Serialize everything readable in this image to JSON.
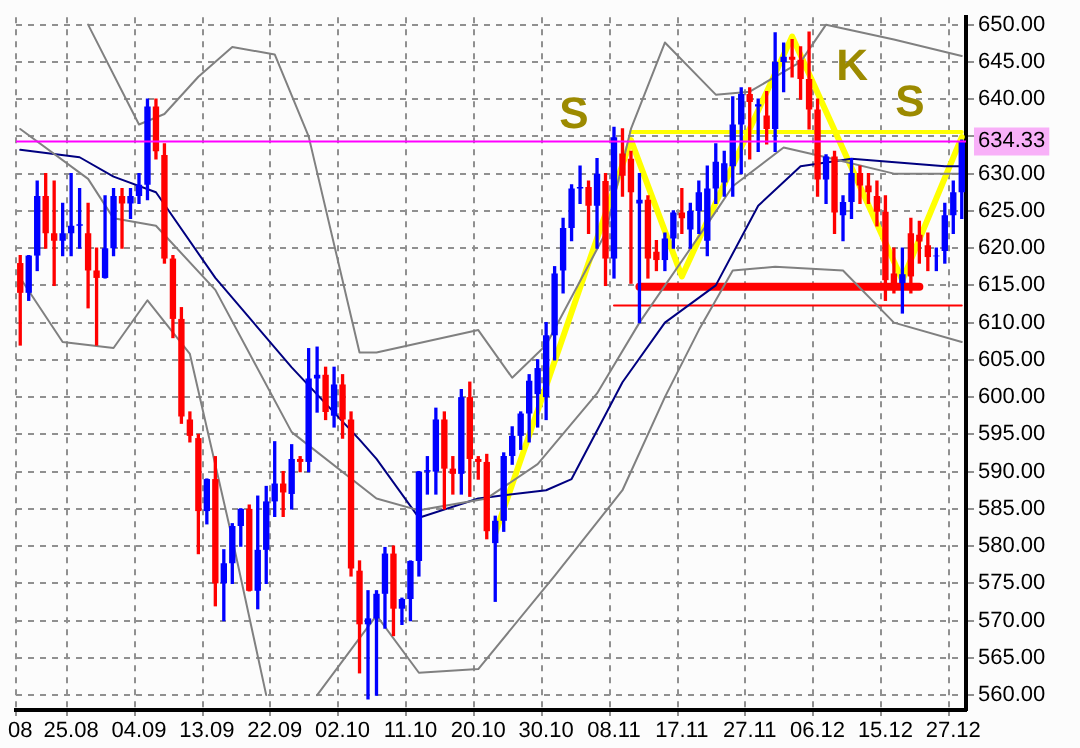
{
  "chart_data": {
    "type": "candlestick",
    "categories": [
      "08",
      null,
      null,
      null,
      null,
      null,
      "25.08",
      null,
      null,
      null,
      null,
      null,
      null,
      null,
      "04.09",
      null,
      null,
      null,
      null,
      null,
      null,
      null,
      "13.09",
      null,
      null,
      null,
      null,
      null,
      null,
      null,
      "22.09",
      null,
      null,
      null,
      null,
      null,
      null,
      null,
      "02.10",
      null,
      null,
      null,
      null,
      null,
      null,
      null,
      "11.10",
      null,
      null,
      null,
      null,
      null,
      null,
      null,
      "20.10",
      null,
      null,
      null,
      null,
      null,
      null,
      null,
      "30.10",
      null,
      null,
      null,
      null,
      null,
      null,
      null,
      "08.11",
      null,
      null,
      null,
      null,
      null,
      null,
      null,
      "17.11",
      null,
      null,
      null,
      null,
      null,
      null,
      null,
      "27.11",
      null,
      null,
      null,
      null,
      null,
      null,
      null,
      "06.12",
      null,
      null,
      null,
      null,
      null,
      null,
      null,
      "15.12",
      null,
      null,
      null,
      null,
      null,
      null,
      null,
      "27.12",
      null
    ],
    "ohlc": [
      [
        618,
        619,
        607,
        614
      ],
      [
        614,
        619,
        613,
        619
      ],
      [
        619,
        629,
        617,
        627
      ],
      [
        627,
        630,
        620,
        622
      ],
      [
        622,
        629,
        615,
        621
      ],
      [
        621,
        626,
        619,
        622
      ],
      [
        622,
        630,
        619,
        623
      ],
      [
        623,
        628,
        620,
        623.2
      ],
      [
        622,
        626,
        612,
        617
      ],
      [
        617,
        620,
        607,
        616
      ],
      [
        616,
        627,
        616,
        620
      ],
      [
        620,
        628,
        619,
        627
      ],
      [
        627,
        628,
        620,
        626
      ],
      [
        626,
        628,
        624,
        627
      ],
      [
        627,
        630,
        626,
        628.5
      ],
      [
        628.5,
        640,
        626.5,
        639
      ],
      [
        639,
        640,
        632,
        633
      ],
      [
        632.5,
        634,
        618,
        618.6
      ],
      [
        618.6,
        619,
        608,
        610.5
      ],
      [
        610.5,
        612,
        596.5,
        597.4
      ],
      [
        597,
        598,
        594,
        594.8
      ],
      [
        594.5,
        595,
        579,
        584.7
      ],
      [
        584.7,
        589,
        583,
        589
      ],
      [
        589,
        592,
        572,
        575
      ],
      [
        575,
        579.5,
        570,
        577.7
      ],
      [
        577.7,
        583,
        575,
        582.7
      ],
      [
        582.7,
        585,
        580,
        585
      ],
      [
        585,
        585.5,
        574,
        574
      ],
      [
        574,
        586.7,
        571.6,
        579.5
      ],
      [
        579.5,
        588,
        575,
        586
      ],
      [
        586,
        594,
        584,
        588.4
      ],
      [
        588.4,
        590,
        584,
        587.2
      ],
      [
        587,
        593.6,
        585,
        591.7
      ],
      [
        591.7,
        592,
        590,
        591.3
      ],
      [
        591.3,
        606.5,
        590,
        602.5
      ],
      [
        602.5,
        606.7,
        598,
        603
      ],
      [
        603,
        604,
        597,
        598
      ],
      [
        597.5,
        604,
        596,
        601.7
      ],
      [
        601.7,
        603,
        594.5,
        597
      ],
      [
        597,
        598,
        576,
        577
      ],
      [
        576.7,
        578,
        563,
        569.5
      ],
      [
        569.5,
        574,
        559.5,
        570.3
      ],
      [
        570.3,
        574,
        560,
        573.6
      ],
      [
        573.6,
        579.8,
        569,
        579
      ],
      [
        579,
        580,
        568,
        571.6
      ],
      [
        571.6,
        573,
        569.5,
        572.9
      ],
      [
        572.9,
        578,
        570,
        578
      ],
      [
        578,
        590,
        576,
        590
      ],
      [
        590,
        592,
        587,
        590.2
      ],
      [
        590,
        598.5,
        587,
        597
      ],
      [
        597,
        598,
        585,
        590.4
      ],
      [
        590.4,
        592,
        587,
        589.7
      ],
      [
        589.7,
        601,
        587,
        600
      ],
      [
        600,
        602,
        586.7,
        591.7
      ],
      [
        591.7,
        592,
        589,
        591.3
      ],
      [
        591.3,
        592.3,
        581,
        582
      ],
      [
        580.4,
        584,
        572.6,
        583.4
      ],
      [
        583.4,
        592.5,
        582,
        592.1
      ],
      [
        592.1,
        596,
        591,
        594.8
      ],
      [
        594.8,
        598,
        593,
        597.8
      ],
      [
        597.8,
        603,
        594,
        602.2
      ],
      [
        600.4,
        605,
        596,
        603.9
      ],
      [
        600,
        610,
        597,
        608.3
      ],
      [
        608.3,
        617.5,
        605,
        616.6
      ],
      [
        617,
        624,
        614,
        622.7
      ],
      [
        622.7,
        628.5,
        621,
        628
      ],
      [
        628,
        631,
        626,
        628.2
      ],
      [
        628.2,
        629,
        622,
        625.7
      ],
      [
        625.7,
        632,
        620,
        630
      ],
      [
        629,
        630,
        615,
        618.6
      ],
      [
        618.6,
        636.2,
        616,
        634.9
      ],
      [
        632.7,
        636,
        627,
        629.7
      ],
      [
        632,
        633,
        615.3,
        627.5
      ],
      [
        626,
        630,
        610,
        626.5
      ],
      [
        626.5,
        627,
        616,
        618.6
      ],
      [
        619.5,
        621,
        617,
        618.4
      ],
      [
        618.4,
        622,
        617,
        621.3
      ],
      [
        621.3,
        625,
        620,
        624.8
      ],
      [
        624.8,
        628,
        622,
        624
      ],
      [
        622.5,
        626,
        620,
        625
      ],
      [
        625,
        629,
        622,
        627.5
      ],
      [
        621,
        631,
        619,
        628
      ],
      [
        628,
        634,
        626,
        631.6
      ],
      [
        628.8,
        633,
        627,
        631.4
      ],
      [
        631,
        640.3,
        627,
        636.6
      ],
      [
        636.6,
        641.5,
        630,
        640.7
      ],
      [
        640.7,
        641.5,
        632,
        639.6
      ],
      [
        639,
        640,
        633,
        639.3
      ],
      [
        637.8,
        641,
        634,
        636
      ],
      [
        636,
        648.9,
        633,
        645
      ],
      [
        645,
        647.5,
        641,
        645.7
      ],
      [
        645.7,
        648,
        643,
        645.3
      ],
      [
        645.3,
        647,
        640,
        642.7
      ],
      [
        642.7,
        649,
        636,
        638.6
      ],
      [
        638.6,
        640,
        627,
        629.2
      ],
      [
        629.2,
        632.5,
        626,
        632.3
      ],
      [
        632.3,
        633,
        622,
        624.8
      ],
      [
        624.4,
        627,
        621,
        626.2
      ],
      [
        626.2,
        632,
        624,
        630.1
      ],
      [
        630.1,
        631,
        626,
        628.4
      ],
      [
        628.4,
        630,
        626,
        627.5
      ],
      [
        627,
        629,
        623,
        624.9
      ],
      [
        624.9,
        627,
        613,
        615.7
      ],
      [
        616.6,
        620,
        614,
        615.3
      ],
      [
        615.3,
        620,
        611.3,
        616.5
      ],
      [
        622,
        624,
        614,
        616.2
      ],
      [
        621.8,
        623.6,
        618,
        620.9
      ],
      [
        620.4,
        622,
        617,
        618.8
      ],
      [
        618.9,
        620,
        617,
        619
      ],
      [
        619.6,
        626,
        618,
        624.4
      ],
      [
        624.4,
        629,
        622,
        627.5
      ],
      [
        627.5,
        634.5,
        624,
        634.3
      ]
    ],
    "colors": [
      "#ff0000",
      "#0000ff",
      "#0000ff",
      "#ff0000",
      "#ff0000",
      "#0000ff",
      "#0000ff",
      "#0000ff",
      "#ff0000",
      "#ff0000",
      "#0000ff",
      "#0000ff",
      "#ff0000",
      "#0000ff",
      "#0000ff",
      "#0000ff",
      "#ff0000",
      "#ff0000",
      "#ff0000",
      "#ff0000",
      "#ff0000",
      "#ff0000",
      "#0000ff",
      "#ff0000",
      "#0000ff",
      "#0000ff",
      "#0000ff",
      "#ff0000",
      "#0000ff",
      "#0000ff",
      "#0000ff",
      "#ff0000",
      "#0000ff",
      "#ff0000",
      "#0000ff",
      "#0000ff",
      "#ff0000",
      "#0000ff",
      "#ff0000",
      "#ff0000",
      "#ff0000",
      "#0000ff",
      "#0000ff",
      "#0000ff",
      "#ff0000",
      "#0000ff",
      "#0000ff",
      "#0000ff",
      "#0000ff",
      "#0000ff",
      "#ff0000",
      "#ff0000",
      "#0000ff",
      "#ff0000",
      "#ff0000",
      "#ff0000",
      "#0000ff",
      "#0000ff",
      "#0000ff",
      "#0000ff",
      "#0000ff",
      "#0000ff",
      "#0000ff",
      "#0000ff",
      "#0000ff",
      "#0000ff",
      "#0000ff",
      "#ff0000",
      "#0000ff",
      "#ff0000",
      "#0000ff",
      "#ff0000",
      "#ff0000",
      "#0000ff",
      "#ff0000",
      "#ff0000",
      "#0000ff",
      "#0000ff",
      "#ff0000",
      "#0000ff",
      "#0000ff",
      "#0000ff",
      "#0000ff",
      "#0000ff",
      "#0000ff",
      "#0000ff",
      "#ff0000",
      "#0000ff",
      "#ff0000",
      "#0000ff",
      "#0000ff",
      "#ff0000",
      "#ff0000",
      "#ff0000",
      "#ff0000",
      "#0000ff",
      "#ff0000",
      "#0000ff",
      "#0000ff",
      "#ff0000",
      "#ff0000",
      "#ff0000",
      "#ff0000",
      "#ff0000",
      "#0000ff",
      "#ff0000",
      "#ff0000",
      "#ff0000",
      "#0000ff",
      "#0000ff",
      "#0000ff",
      "#0000ff"
    ],
    "series": [
      {
        "type": "line",
        "color": "#808080",
        "values": [
          null,
          null,
          null,
          null,
          null,
          null,
          null,
          null,
          650,
          null,
          null,
          null,
          null,
          null,
          636.6,
          null,
          null,
          638,
          null,
          null,
          null,
          643,
          null,
          null,
          null,
          647,
          null,
          null,
          null,
          null,
          646,
          null,
          null,
          null,
          635,
          null,
          null,
          null,
          null,
          null,
          606,
          null,
          606,
          null,
          null,
          null,
          null,
          null,
          null,
          null,
          null,
          null,
          null,
          null,
          609,
          null,
          null,
          null,
          602.6,
          null,
          null,
          null,
          607,
          null,
          null,
          null,
          null,
          null,
          null,
          622,
          null,
          null,
          636,
          null,
          null,
          null,
          647.6,
          null,
          null,
          null,
          null,
          null,
          640.6,
          null,
          null,
          null,
          641,
          null,
          null,
          null,
          null,
          null,
          645,
          null,
          null,
          650,
          null,
          null,
          null,
          null,
          null,
          null,
          null,
          648,
          null,
          null,
          null,
          null,
          null,
          null,
          null,
          645.8
        ]
      },
      {
        "type": "line",
        "color": "#808080",
        "values": [
          636,
          null,
          null,
          null,
          null,
          null,
          null,
          null,
          629.3,
          null,
          null,
          624,
          null,
          null,
          null,
          null,
          623,
          null,
          null,
          null,
          null,
          null,
          null,
          614.4,
          null,
          null,
          null,
          null,
          null,
          null,
          null,
          null,
          595.3,
          null,
          null,
          null,
          null,
          null,
          null,
          null,
          null,
          null,
          586.4,
          null,
          null,
          null,
          null,
          584.8,
          null,
          null,
          null,
          null,
          null,
          null,
          null,
          586.4,
          null,
          null,
          null,
          null,
          null,
          591,
          null,
          null,
          null,
          null,
          null,
          null,
          600.5,
          null,
          null,
          null,
          null,
          610,
          null,
          null,
          null,
          null,
          null,
          null,
          null,
          null,
          624.9,
          null,
          628.3,
          null,
          null,
          null,
          null,
          null,
          633.5,
          null,
          null,
          null,
          null,
          632.2,
          null,
          null,
          null,
          null,
          null,
          null,
          null,
          630,
          null,
          null,
          null,
          null,
          null,
          null,
          null,
          630
        ]
      },
      {
        "type": "line",
        "color": "#808080",
        "values": [
          616,
          null,
          null,
          null,
          null,
          607.4,
          null,
          null,
          null,
          null,
          null,
          606.6,
          null,
          null,
          null,
          613,
          null,
          null,
          null,
          null,
          605.8,
          null,
          null,
          null,
          null,
          581,
          null,
          null,
          null,
          560,
          null,
          null,
          null,
          null,
          null,
          null,
          null,
          null,
          null,
          null,
          null,
          null,
          null,
          null,
          null,
          null,
          null,
          null,
          null,
          null,
          null,
          null,
          null,
          null,
          null,
          null,
          null,
          null,
          null,
          null,
          null,
          null,
          null,
          null,
          null,
          null,
          null,
          null,
          null,
          null,
          null,
          null,
          null,
          null,
          null,
          null,
          null,
          null,
          null,
          null,
          null,
          null,
          null,
          null,
          null,
          null,
          null,
          null,
          null,
          null,
          null,
          null,
          null,
          null,
          null,
          null,
          null,
          null,
          null,
          null,
          null,
          null,
          null,
          null,
          null,
          null,
          null,
          null,
          null,
          null,
          null,
          null
        ]
      },
      {
        "type": "line",
        "color": "#808080",
        "values": [
          null,
          null,
          null,
          null,
          null,
          null,
          null,
          null,
          null,
          null,
          null,
          null,
          null,
          null,
          null,
          null,
          null,
          null,
          null,
          null,
          null,
          null,
          null,
          null,
          null,
          null,
          null,
          null,
          null,
          null,
          null,
          null,
          null,
          null,
          null,
          560,
          null,
          null,
          null,
          null,
          null,
          null,
          570.7,
          null,
          null,
          null,
          null,
          563,
          null,
          null,
          null,
          null,
          null,
          null,
          563.5,
          null,
          null,
          null,
          null,
          null,
          null,
          null,
          null,
          576,
          null,
          null,
          null,
          null,
          null,
          null,
          null,
          587.5,
          null,
          null,
          null,
          null,
          600,
          null,
          null,
          null,
          609,
          null,
          null,
          null,
          617,
          null,
          null,
          null,
          null,
          617.5,
          null,
          null,
          null,
          null,
          null,
          null,
          null,
          617,
          null,
          null,
          null,
          null,
          null,
          610,
          null,
          null,
          null,
          null,
          null,
          null,
          null,
          607.4
        ]
      },
      {
        "type": "line",
        "color": "#000080",
        "values": [
          633.2,
          null,
          null,
          null,
          null,
          null,
          null,
          632.2,
          null,
          null,
          null,
          629.6,
          null,
          null,
          null,
          null,
          627.5,
          null,
          null,
          null,
          null,
          null,
          null,
          616,
          null,
          null,
          null,
          null,
          null,
          null,
          null,
          null,
          604,
          null,
          null,
          null,
          null,
          null,
          null,
          null,
          594.3,
          null,
          591.7,
          null,
          null,
          null,
          null,
          583.8,
          null,
          null,
          null,
          null,
          null,
          null,
          586.4,
          null,
          null,
          null,
          null,
          null,
          null,
          null,
          587.5,
          null,
          null,
          589,
          null,
          null,
          null,
          null,
          null,
          602,
          null,
          null,
          null,
          null,
          610,
          null,
          null,
          null,
          null,
          null,
          615,
          null,
          null,
          null,
          null,
          625.7,
          null,
          null,
          null,
          null,
          631,
          null,
          null,
          null,
          null,
          null,
          632,
          null,
          null,
          null,
          null,
          null,
          null,
          null,
          null,
          null,
          null,
          631,
          null,
          631
        ]
      },
      {
        "type": "line",
        "color": "#ff0000",
        "values": [
          null,
          null,
          null,
          null,
          null,
          null,
          null,
          null,
          null,
          null,
          null,
          null,
          null,
          null,
          null,
          null,
          null,
          null,
          null,
          null,
          null,
          null,
          null,
          null,
          null,
          null,
          null,
          null,
          null,
          null,
          null,
          null,
          null,
          null,
          null,
          null,
          null,
          null,
          null,
          null,
          null,
          null,
          null,
          null,
          null,
          null,
          null,
          null,
          null,
          null,
          null,
          null,
          null,
          null,
          null,
          null,
          null,
          null,
          null,
          null,
          null,
          null,
          null,
          null,
          null,
          null,
          null,
          null,
          null,
          null,
          612.3,
          null,
          null,
          null,
          null,
          null,
          null,
          null,
          null,
          null,
          null,
          null,
          null,
          null,
          null,
          null,
          null,
          null,
          null,
          null,
          null,
          null,
          null,
          null,
          null,
          null,
          null,
          null,
          null,
          null,
          null,
          null,
          null,
          null,
          null,
          null,
          null,
          null,
          null,
          null,
          null,
          612.3
        ]
      },
      {
        "type": "line",
        "color": "#ff0000",
        "values": [
          null,
          null,
          null,
          null,
          null,
          null,
          null,
          null,
          null,
          null,
          null,
          null,
          null,
          null,
          null,
          null,
          null,
          null,
          null,
          null,
          null,
          null,
          null,
          null,
          null,
          null,
          null,
          null,
          null,
          null,
          null,
          null,
          null,
          null,
          null,
          null,
          null,
          null,
          null,
          null,
          null,
          null,
          null,
          null,
          null,
          null,
          null,
          null,
          null,
          null,
          null,
          null,
          null,
          null,
          null,
          null,
          null,
          null,
          null,
          null,
          null,
          null,
          null,
          null,
          null,
          null,
          null,
          null,
          null,
          null,
          null,
          null,
          null,
          614.8,
          null,
          null,
          null,
          null,
          null,
          null,
          null,
          null,
          null,
          null,
          null,
          null,
          null,
          null,
          null,
          null,
          null,
          null,
          null,
          null,
          null,
          null,
          null,
          null,
          null,
          null,
          null,
          null,
          null,
          null,
          null,
          null,
          614.8,
          null,
          null,
          null,
          null,
          null
        ]
      },
      {
        "type": "line",
        "color": "#ffff00",
        "values": [
          null,
          null,
          null,
          null,
          null,
          null,
          null,
          null,
          null,
          null,
          null,
          null,
          null,
          null,
          null,
          null,
          null,
          null,
          null,
          null,
          null,
          null,
          null,
          null,
          null,
          null,
          null,
          null,
          null,
          null,
          null,
          null,
          null,
          null,
          null,
          null,
          null,
          null,
          null,
          null,
          null,
          null,
          null,
          null,
          null,
          null,
          null,
          null,
          null,
          null,
          null,
          null,
          null,
          null,
          null,
          null,
          null,
          null,
          null,
          null,
          null,
          null,
          null,
          null,
          null,
          null,
          null,
          null,
          null,
          null,
          null,
          null,
          635.6,
          null,
          null,
          null,
          null,
          null,
          null,
          null,
          null,
          null,
          null,
          null,
          null,
          null,
          null,
          null,
          null,
          null,
          null,
          null,
          null,
          null,
          null,
          null,
          null,
          null,
          null,
          null,
          null,
          null,
          null,
          null,
          null,
          null,
          null,
          null,
          null,
          null,
          null,
          635.6
        ]
      },
      {
        "type": "line",
        "color": "#ffff00",
        "values": [
          null,
          null,
          null,
          null,
          null,
          null,
          null,
          null,
          null,
          null,
          null,
          null,
          null,
          null,
          null,
          null,
          null,
          null,
          null,
          null,
          null,
          null,
          null,
          null,
          null,
          null,
          null,
          null,
          null,
          null,
          null,
          null,
          null,
          null,
          null,
          null,
          null,
          null,
          null,
          null,
          null,
          null,
          null,
          null,
          null,
          null,
          null,
          null,
          null,
          null,
          null,
          null,
          null,
          null,
          null,
          null,
          581.7,
          null,
          null,
          null,
          null,
          null,
          null,
          null,
          null,
          null,
          null,
          null,
          null,
          null,
          null,
          null,
          634.5,
          null,
          null,
          null,
          null,
          null,
          616.2,
          null,
          null,
          null,
          null,
          null,
          null,
          null,
          null,
          null,
          null,
          null,
          null,
          648.4,
          null,
          null,
          null,
          null,
          null,
          null,
          null,
          null,
          null,
          null,
          null,
          null,
          615.7,
          null,
          null,
          null,
          null,
          null,
          null,
          634.9
        ]
      }
    ],
    "ylim": [
      558,
      651
    ],
    "yticks": [
      {
        "value": 560,
        "label": "560.00"
      },
      {
        "value": 565,
        "label": "565.00"
      },
      {
        "value": 570,
        "label": "570.00"
      },
      {
        "value": 575,
        "label": "575.00"
      },
      {
        "value": 580,
        "label": "580.00"
      },
      {
        "value": 585,
        "label": "585.00"
      },
      {
        "value": 590,
        "label": "590.00"
      },
      {
        "value": 595,
        "label": "595.00"
      },
      {
        "value": 600,
        "label": "600.00"
      },
      {
        "value": 605,
        "label": "605.00"
      },
      {
        "value": 610,
        "label": "610.00"
      },
      {
        "value": 615,
        "label": "615.00"
      },
      {
        "value": 620,
        "label": "620.00"
      },
      {
        "value": 625,
        "label": "625.00"
      },
      {
        "value": 630,
        "label": "630.00"
      },
      {
        "value": 635,
        "label": null
      },
      {
        "value": 640,
        "label": "640.00"
      },
      {
        "value": 645,
        "label": "645.00"
      },
      {
        "value": 650,
        "label": "650.00"
      }
    ],
    "ref_lines": [
      {
        "axis": "y",
        "value": 634.33,
        "label": "634.33",
        "color": "#ff00ff"
      }
    ],
    "annotations": [
      "S",
      "K",
      "S"
    ],
    "grid": true,
    "marker": "none"
  }
}
